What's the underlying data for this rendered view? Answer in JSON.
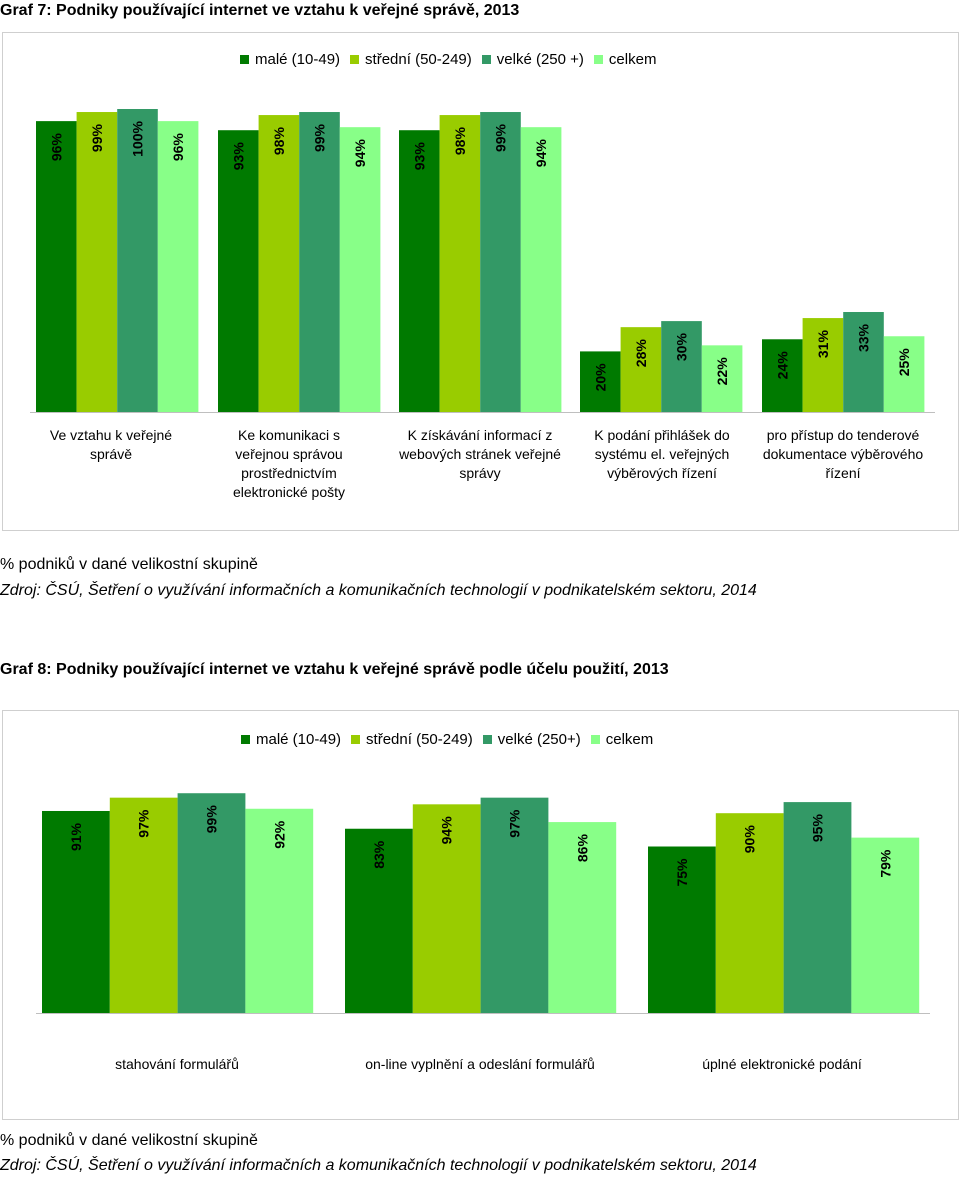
{
  "colors": {
    "small": "#007a00",
    "medium": "#99cc00",
    "large": "#339966",
    "total": "#88ff88"
  },
  "chart1_title": "Graf 7: Podniky používající internet ve vztahu k veřejné správě, 2013",
  "chart2_title": "Graf 8: Podniky používající internet ve vztahu k veřejné správě podle účelu použití, 2013",
  "chart1_note": "% podniků v dané velikostní skupině",
  "chart1_source": "Zdroj: ČSÚ, Šetření o využívání informačních a komunikačních technologií v podnikatelském sektoru, 2014",
  "chart2_note": "% podniků v dané velikostní skupině",
  "chart2_source": "Zdroj: ČSÚ, Šetření o využívání informačních a komunikačních technologií v podnikatelském sektoru, 2014",
  "chart_data": [
    {
      "type": "bar",
      "title": "Graf 7: Podniky používající internet ve vztahu k veřejné správě, 2013",
      "categories": [
        "Ve vztahu k veřejné správě",
        "Ke komunikaci s veřejnou správou prostřednictvím elektronické pošty",
        "K získávání informací z webových stránek veřejné správy",
        "K podání přihlášek do systému el. veřejných výběrových řízení",
        "pro přístup do tenderové dokumentace výběrového řízení"
      ],
      "series": [
        {
          "name": "malé (10-49)",
          "values": [
            96,
            93,
            93,
            20,
            24
          ]
        },
        {
          "name": "střední (50-249)",
          "values": [
            99,
            98,
            98,
            28,
            31
          ]
        },
        {
          "name": "velké (250 +)",
          "values": [
            100,
            99,
            99,
            30,
            33
          ]
        },
        {
          "name": "celkem",
          "values": [
            96,
            94,
            94,
            22,
            25
          ]
        }
      ],
      "value_labels": [
        [
          "96%",
          "93%",
          "93%",
          "20%",
          "24%"
        ],
        [
          "99%",
          "98%",
          "98%",
          "28%",
          "31%"
        ],
        [
          "100%",
          "99%",
          "99%",
          "30%",
          "33%"
        ],
        [
          "96%",
          "94%",
          "94%",
          "22%",
          "25%"
        ]
      ],
      "ylim": [
        0,
        100
      ],
      "legend": "top"
    },
    {
      "type": "bar",
      "title": "Graf 8: Podniky používající internet ve vztahu k veřejné správě podle účelu použití, 2013",
      "categories": [
        "stahování formulářů",
        "on-line vyplnění a odeslání formulářů",
        "úplné elektronické podání"
      ],
      "series": [
        {
          "name": "malé (10-49)",
          "values": [
            91,
            83,
            75
          ]
        },
        {
          "name": "střední (50-249)",
          "values": [
            97,
            94,
            90
          ]
        },
        {
          "name": "velké (250+)",
          "values": [
            99,
            97,
            95
          ]
        },
        {
          "name": "celkem",
          "values": [
            92,
            86,
            79
          ]
        }
      ],
      "value_labels": [
        [
          "91%",
          "83%",
          "75%"
        ],
        [
          "97%",
          "94%",
          "90%"
        ],
        [
          "99%",
          "97%",
          "95%"
        ],
        [
          "92%",
          "86%",
          "79%"
        ]
      ],
      "ylim": [
        0,
        100
      ],
      "legend": "top"
    }
  ]
}
